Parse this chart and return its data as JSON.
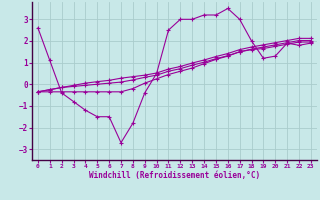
{
  "xlabel": "Windchill (Refroidissement éolien,°C)",
  "bg_color": "#c8e8e8",
  "line_color": "#990099",
  "grid_color": "#aacccc",
  "ylim": [
    -3.5,
    3.8
  ],
  "xlim": [
    -0.5,
    23.5
  ],
  "yticks": [
    -3,
    -2,
    -1,
    0,
    1,
    2,
    3
  ],
  "xticks": [
    0,
    1,
    2,
    3,
    4,
    5,
    6,
    7,
    8,
    9,
    10,
    11,
    12,
    13,
    14,
    15,
    16,
    17,
    18,
    19,
    20,
    21,
    22,
    23
  ],
  "series": [
    [
      2.6,
      1.1,
      -0.4,
      -0.8,
      -1.2,
      -1.5,
      -1.5,
      -2.7,
      -1.8,
      -0.4,
      0.5,
      2.5,
      3.0,
      3.0,
      3.2,
      3.2,
      3.5,
      3.0,
      2.0,
      1.2,
      1.3,
      1.9,
      1.8,
      1.9
    ],
    [
      -0.35,
      -0.35,
      -0.35,
      -0.35,
      -0.35,
      -0.35,
      -0.35,
      -0.35,
      -0.2,
      0.05,
      0.25,
      0.45,
      0.6,
      0.75,
      0.95,
      1.15,
      1.3,
      1.5,
      1.6,
      1.65,
      1.75,
      1.85,
      1.95,
      1.95
    ],
    [
      -0.35,
      -0.25,
      -0.15,
      -0.1,
      -0.05,
      0.0,
      0.05,
      0.1,
      0.2,
      0.32,
      0.42,
      0.6,
      0.72,
      0.88,
      1.02,
      1.18,
      1.32,
      1.5,
      1.62,
      1.72,
      1.82,
      1.92,
      2.02,
      2.02
    ],
    [
      -0.35,
      -0.25,
      -0.15,
      -0.05,
      0.05,
      0.12,
      0.18,
      0.28,
      0.35,
      0.42,
      0.52,
      0.7,
      0.82,
      0.98,
      1.12,
      1.28,
      1.42,
      1.6,
      1.72,
      1.82,
      1.92,
      2.02,
      2.12,
      2.12
    ]
  ]
}
